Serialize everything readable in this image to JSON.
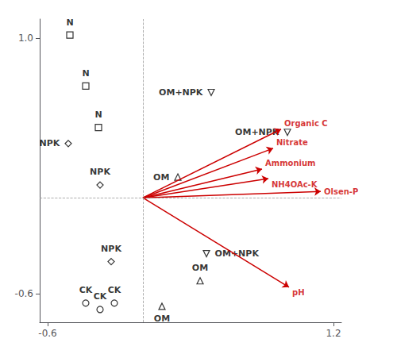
{
  "chart_data": {
    "type": "scatter",
    "xlim": [
      -0.65,
      1.25
    ],
    "ylim": [
      -0.78,
      1.12
    ],
    "xticks": [
      -0.6,
      1.2
    ],
    "yticks": [
      -0.6,
      {
        "value": 1.0,
        "label": "1.0"
      }
    ],
    "grid": false,
    "vectors": {
      "color": "#cc0000",
      "items": [
        {
          "name": "Organic C",
          "x": 0.87,
          "y": 0.43
        },
        {
          "name": "Nitrate",
          "x": 0.82,
          "y": 0.31
        },
        {
          "name": "Ammonium",
          "x": 0.75,
          "y": 0.18
        },
        {
          "name": "NH4OAc-K",
          "x": 0.79,
          "y": 0.12
        },
        {
          "name": "Olsen-P",
          "x": 1.12,
          "y": 0.04
        },
        {
          "name": "pH",
          "x": 0.92,
          "y": -0.56
        }
      ]
    },
    "series": [
      {
        "marker": "square",
        "color": "black",
        "points": [
          {
            "x": -0.46,
            "y": 1.02,
            "label": "N"
          },
          {
            "x": -0.36,
            "y": 0.7,
            "label": "N"
          },
          {
            "x": -0.28,
            "y": 0.44,
            "label": "N"
          }
        ]
      },
      {
        "marker": "diamond",
        "color": "black",
        "points": [
          {
            "x": -0.47,
            "y": 0.34,
            "label": "NPK"
          },
          {
            "x": -0.27,
            "y": 0.08,
            "label": "NPK"
          },
          {
            "x": -0.2,
            "y": -0.4,
            "label": "NPK"
          }
        ]
      },
      {
        "marker": "circle",
        "color": "black",
        "points": [
          {
            "x": -0.36,
            "y": -0.66,
            "label": "CK"
          },
          {
            "x": -0.27,
            "y": -0.7,
            "label": "CK"
          },
          {
            "x": -0.18,
            "y": -0.66,
            "label": "CK"
          }
        ]
      },
      {
        "marker": "triangle-up",
        "color": "black",
        "points": [
          {
            "x": 0.12,
            "y": -0.68,
            "label": "OM"
          },
          {
            "x": 0.36,
            "y": -0.52,
            "label": "OM"
          }
        ]
      },
      {
        "marker": "triangle-down",
        "color": "black",
        "points": [
          {
            "x": 0.43,
            "y": 0.66,
            "label": "OM+NPK"
          },
          {
            "x": 0.4,
            "y": -0.35,
            "label": "OM+NPK"
          }
        ]
      },
      {
        "marker": "triangle-up",
        "color": "black",
        "points": [
          {
            "x": 0.22,
            "y": 0.13,
            "label": "OM"
          }
        ]
      },
      {
        "marker": "triangle-down",
        "color": "black",
        "points": [
          {
            "x": 0.91,
            "y": 0.41,
            "label": "OM+NPK"
          }
        ]
      }
    ]
  }
}
